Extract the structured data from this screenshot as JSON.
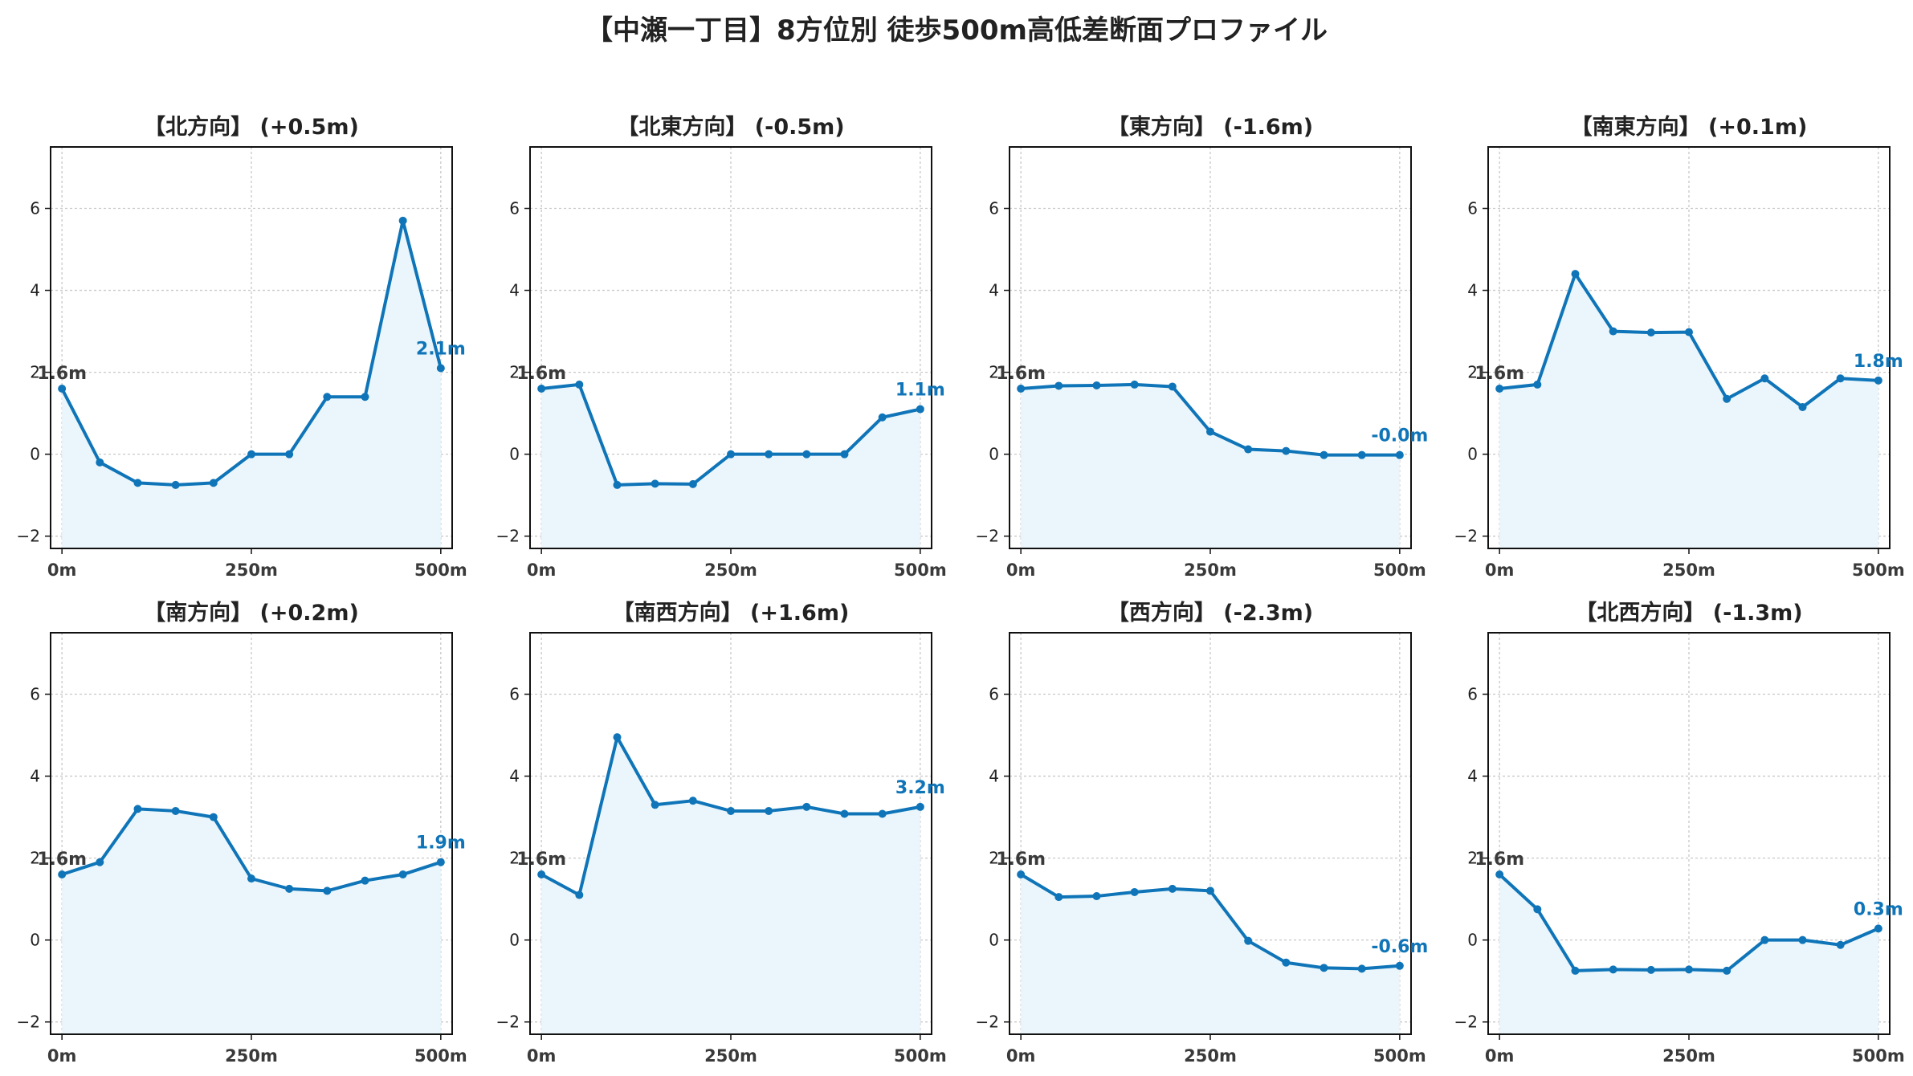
{
  "title": "【中瀬一丁目】8方位別 徒歩500m高低差断面プロファイル",
  "colors": {
    "line": "#0f75b8",
    "fill": "#eaf6fb",
    "start_label": "#3a3a3a",
    "end_label": "#0f75b8",
    "grid": "#c8c8c8",
    "axis": "#111111"
  },
  "chart_data": [
    {
      "type": "line",
      "title": "【北方向】 (+0.5m)",
      "x": [
        0,
        50,
        100,
        150,
        200,
        250,
        300,
        350,
        400,
        450,
        500
      ],
      "values": [
        1.6,
        -0.2,
        -0.7,
        -0.75,
        -0.7,
        0.0,
        0.0,
        1.4,
        1.4,
        5.7,
        2.1
      ],
      "start_label": "1.6m",
      "end_label": "2.1m",
      "xticks": [
        "0m",
        "250m",
        "500m"
      ],
      "yticks": [
        "−2",
        "0",
        "2",
        "4",
        "6"
      ],
      "ylim": [
        -2.3,
        7.5
      ],
      "xlim": [
        -15,
        515
      ],
      "grid": true
    },
    {
      "type": "line",
      "title": "【北東方向】 (-0.5m)",
      "x": [
        0,
        50,
        100,
        150,
        200,
        250,
        300,
        350,
        400,
        450,
        500
      ],
      "values": [
        1.6,
        1.7,
        -0.75,
        -0.72,
        -0.73,
        0.0,
        0.0,
        0.0,
        0.0,
        0.9,
        1.1
      ],
      "start_label": "1.6m",
      "end_label": "1.1m",
      "xticks": [
        "0m",
        "250m",
        "500m"
      ],
      "yticks": [
        "−2",
        "0",
        "2",
        "4",
        "6"
      ],
      "ylim": [
        -2.3,
        7.5
      ],
      "xlim": [
        -15,
        515
      ],
      "grid": true
    },
    {
      "type": "line",
      "title": "【東方向】 (-1.6m)",
      "x": [
        0,
        50,
        100,
        150,
        200,
        250,
        300,
        350,
        400,
        450,
        500
      ],
      "values": [
        1.6,
        1.67,
        1.68,
        1.7,
        1.65,
        0.55,
        0.12,
        0.08,
        -0.02,
        -0.02,
        -0.02
      ],
      "start_label": "1.6m",
      "end_label": "-0.0m",
      "xticks": [
        "0m",
        "250m",
        "500m"
      ],
      "yticks": [
        "−2",
        "0",
        "2",
        "4",
        "6"
      ],
      "ylim": [
        -2.3,
        7.5
      ],
      "xlim": [
        -15,
        515
      ],
      "grid": true
    },
    {
      "type": "line",
      "title": "【南東方向】 (+0.1m)",
      "x": [
        0,
        50,
        100,
        150,
        200,
        250,
        300,
        350,
        400,
        450,
        500
      ],
      "values": [
        1.6,
        1.7,
        4.4,
        3.0,
        2.97,
        2.98,
        1.35,
        1.85,
        1.15,
        1.85,
        1.8
      ],
      "start_label": "1.6m",
      "end_label": "1.8m",
      "xticks": [
        "0m",
        "250m",
        "500m"
      ],
      "yticks": [
        "−2",
        "0",
        "2",
        "4",
        "6"
      ],
      "ylim": [
        -2.3,
        7.5
      ],
      "xlim": [
        -15,
        515
      ],
      "grid": true
    },
    {
      "type": "line",
      "title": "【南方向】 (+0.2m)",
      "x": [
        0,
        50,
        100,
        150,
        200,
        250,
        300,
        350,
        400,
        450,
        500
      ],
      "values": [
        1.6,
        1.9,
        3.2,
        3.15,
        3.0,
        1.5,
        1.25,
        1.2,
        1.45,
        1.6,
        1.9
      ],
      "start_label": "1.6m",
      "end_label": "1.9m",
      "xticks": [
        "0m",
        "250m",
        "500m"
      ],
      "yticks": [
        "−2",
        "0",
        "2",
        "4",
        "6"
      ],
      "ylim": [
        -2.3,
        7.5
      ],
      "xlim": [
        -15,
        515
      ],
      "grid": true
    },
    {
      "type": "line",
      "title": "【南西方向】 (+1.6m)",
      "x": [
        0,
        50,
        100,
        150,
        200,
        250,
        300,
        350,
        400,
        450,
        500
      ],
      "values": [
        1.6,
        1.1,
        4.95,
        3.3,
        3.4,
        3.15,
        3.15,
        3.25,
        3.08,
        3.08,
        3.25
      ],
      "start_label": "1.6m",
      "end_label": "3.2m",
      "xticks": [
        "0m",
        "250m",
        "500m"
      ],
      "yticks": [
        "−2",
        "0",
        "2",
        "4",
        "6"
      ],
      "ylim": [
        -2.3,
        7.5
      ],
      "xlim": [
        -15,
        515
      ],
      "grid": true
    },
    {
      "type": "line",
      "title": "【西方向】 (-2.3m)",
      "x": [
        0,
        50,
        100,
        150,
        200,
        250,
        300,
        350,
        400,
        450,
        500
      ],
      "values": [
        1.6,
        1.05,
        1.07,
        1.17,
        1.25,
        1.2,
        -0.02,
        -0.55,
        -0.68,
        -0.7,
        -0.63
      ],
      "start_label": "1.6m",
      "end_label": "-0.6m",
      "xticks": [
        "0m",
        "250m",
        "500m"
      ],
      "yticks": [
        "−2",
        "0",
        "2",
        "4",
        "6"
      ],
      "ylim": [
        -2.3,
        7.5
      ],
      "xlim": [
        -15,
        515
      ],
      "grid": true
    },
    {
      "type": "line",
      "title": "【北西方向】 (-1.3m)",
      "x": [
        0,
        50,
        100,
        150,
        200,
        250,
        300,
        350,
        400,
        450,
        500
      ],
      "values": [
        1.6,
        0.75,
        -0.75,
        -0.72,
        -0.73,
        -0.72,
        -0.75,
        0.0,
        0.0,
        -0.12,
        0.28
      ],
      "start_label": "1.6m",
      "end_label": "0.3m",
      "xticks": [
        "0m",
        "250m",
        "500m"
      ],
      "yticks": [
        "−2",
        "0",
        "2",
        "4",
        "6"
      ],
      "ylim": [
        -2.3,
        7.5
      ],
      "xlim": [
        -15,
        515
      ],
      "grid": true
    }
  ]
}
